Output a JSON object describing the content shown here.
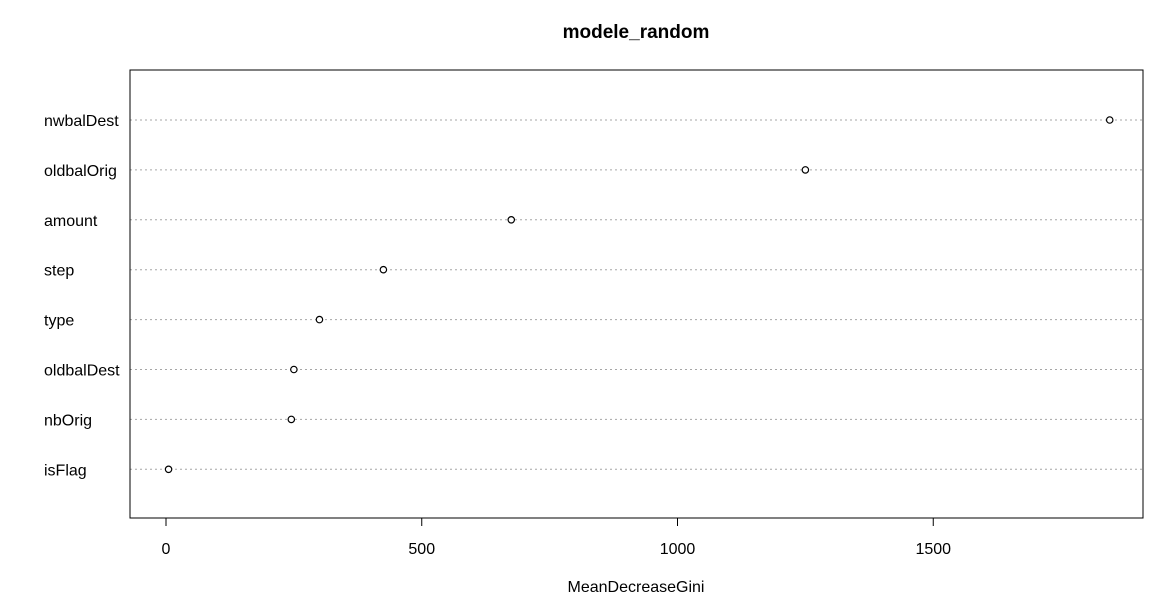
{
  "chart_data": {
    "type": "scatter",
    "title": "modele_random",
    "xlabel": "MeanDecreaseGini",
    "ylabel": "",
    "categories": [
      "nwbalDest",
      "oldbalOrig",
      "amount",
      "step",
      "type",
      "oldbalDest",
      "nbOrig",
      "isFlag"
    ],
    "values": [
      1845,
      1250,
      675,
      425,
      300,
      250,
      245,
      5
    ],
    "xlim": [
      -70,
      1910
    ],
    "xticks": [
      "0",
      "500",
      "1000",
      "1500"
    ],
    "grid": "horizontal dotted guide lines",
    "legend": "none",
    "point_style": "open circle"
  }
}
